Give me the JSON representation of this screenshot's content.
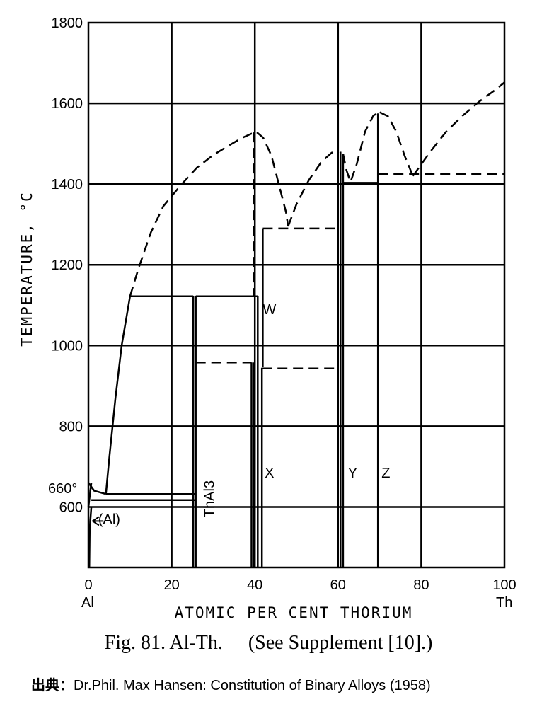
{
  "chart_data": {
    "type": "line",
    "title": "",
    "xlabel": "ATOMIC PER CENT THORIUM",
    "ylabel": "TEMPERATURE, °C",
    "xlim": [
      0,
      100
    ],
    "ylim": [
      450,
      1800
    ],
    "x_ticks": [
      "0",
      "20",
      "40",
      "60",
      "80",
      "100"
    ],
    "y_ticks": [
      "600",
      "800",
      "1000",
      "1200",
      "1400",
      "1600",
      "1800"
    ],
    "x_end_labels": {
      "left": "Al",
      "right": "Th"
    },
    "melting_point_label": "660°",
    "grid": true,
    "phase_labels": [
      {
        "text": "(Al)",
        "x": 5,
        "y": 570
      },
      {
        "text": "ThAl3",
        "x": 28.5,
        "y": 620
      },
      {
        "text": "W",
        "x": 43.5,
        "y": 1090
      },
      {
        "text": "X",
        "x": 43.5,
        "y": 685
      },
      {
        "text": "Y",
        "x": 63.5,
        "y": 685
      },
      {
        "text": "Z",
        "x": 71.5,
        "y": 685
      }
    ],
    "series": [
      {
        "style": "solid",
        "points": [
          [
            4.2,
            632
          ],
          [
            5,
            720
          ],
          [
            6.5,
            870
          ],
          [
            8,
            1000
          ],
          [
            10,
            1122
          ]
        ]
      },
      {
        "style": "solid",
        "points": [
          [
            0,
            660
          ],
          [
            1.4,
            640
          ],
          [
            4.2,
            632
          ]
        ]
      },
      {
        "style": "solid",
        "points": [
          [
            0,
            600
          ],
          [
            0.7,
            660
          ]
        ]
      },
      {
        "style": "solid",
        "points": [
          [
            0.2,
            450
          ],
          [
            0.3,
            545
          ],
          [
            0.7,
            600
          ]
        ]
      },
      {
        "style": "solid",
        "points": [
          [
            0.7,
            617
          ],
          [
            25.8,
            617
          ]
        ]
      },
      {
        "style": "solid",
        "points": [
          [
            4.2,
            632
          ],
          [
            25.8,
            632
          ]
        ]
      },
      {
        "style": "solid",
        "points": [
          [
            10,
            1122
          ],
          [
            25.2,
            1122
          ]
        ]
      },
      {
        "style": "solid",
        "points": [
          [
            25.8,
            1122
          ],
          [
            40.7,
            1122
          ]
        ]
      },
      {
        "style": "solid",
        "points": [
          [
            25.2,
            450
          ],
          [
            25.2,
            1122
          ]
        ]
      },
      {
        "style": "solid",
        "points": [
          [
            25.8,
            450
          ],
          [
            25.8,
            1122
          ]
        ]
      },
      {
        "style": "solid",
        "points": [
          [
            39.2,
            450
          ],
          [
            39.2,
            958
          ]
        ]
      },
      {
        "style": "solid",
        "points": [
          [
            39.8,
            450
          ],
          [
            39.8,
            958
          ]
        ]
      },
      {
        "style": "solid",
        "points": [
          [
            40.7,
            450
          ],
          [
            40.7,
            1122
          ]
        ]
      },
      {
        "style": "solid",
        "points": [
          [
            41.7,
            450
          ],
          [
            41.7,
            945
          ]
        ]
      },
      {
        "style": "solid",
        "points": [
          [
            41.9,
            948
          ],
          [
            41.9,
            1290
          ]
        ]
      },
      {
        "style": "solid",
        "points": [
          [
            60.6,
            450
          ],
          [
            60.6,
            1480
          ]
        ]
      },
      {
        "style": "solid",
        "points": [
          [
            61.2,
            450
          ],
          [
            61.2,
            1475
          ]
        ]
      },
      {
        "style": "solid",
        "points": [
          [
            69.6,
            450
          ],
          [
            69.6,
            1575
          ]
        ]
      },
      {
        "style": "solid",
        "points": [
          [
            61.2,
            1403
          ],
          [
            69.6,
            1403
          ]
        ]
      },
      {
        "style": "dashed",
        "points": [
          [
            10,
            1122
          ],
          [
            12,
            1190
          ],
          [
            15,
            1280
          ],
          [
            18,
            1345
          ],
          [
            22,
            1395
          ],
          [
            26,
            1440
          ],
          [
            30,
            1472
          ],
          [
            34,
            1497
          ],
          [
            37,
            1515
          ],
          [
            39.2,
            1525
          ],
          [
            40.5,
            1528
          ]
        ]
      },
      {
        "style": "dashed",
        "points": [
          [
            40.5,
            1528
          ],
          [
            42,
            1515
          ],
          [
            44,
            1470
          ],
          [
            46,
            1390
          ],
          [
            47.5,
            1330
          ],
          [
            48,
            1295
          ]
        ]
      },
      {
        "style": "dashed",
        "points": [
          [
            48,
            1295
          ],
          [
            50,
            1350
          ],
          [
            53,
            1410
          ],
          [
            56,
            1455
          ],
          [
            58.5,
            1478
          ],
          [
            60.2,
            1480
          ]
        ]
      },
      {
        "style": "dashed",
        "points": [
          [
            61.2,
            1475
          ],
          [
            62,
            1435
          ],
          [
            63,
            1405
          ],
          [
            64.5,
            1450
          ],
          [
            66.5,
            1530
          ],
          [
            68.5,
            1570
          ],
          [
            70,
            1578
          ]
        ]
      },
      {
        "style": "dashed",
        "points": [
          [
            70,
            1578
          ],
          [
            72,
            1568
          ],
          [
            74,
            1530
          ],
          [
            76,
            1470
          ],
          [
            78,
            1420
          ]
        ]
      },
      {
        "style": "dashed",
        "points": [
          [
            78,
            1420
          ],
          [
            82,
            1478
          ],
          [
            86,
            1530
          ],
          [
            90,
            1570
          ],
          [
            94,
            1605
          ],
          [
            98,
            1635
          ],
          [
            100,
            1652
          ]
        ]
      },
      {
        "style": "dashed",
        "points": [
          [
            25.8,
            958
          ],
          [
            39.2,
            958
          ]
        ]
      },
      {
        "style": "dashed",
        "points": [
          [
            41.7,
            943
          ],
          [
            60.6,
            943
          ]
        ]
      },
      {
        "style": "dashed",
        "points": [
          [
            41.9,
            1290
          ],
          [
            60.6,
            1290
          ]
        ]
      },
      {
        "style": "dashed",
        "points": [
          [
            69.6,
            1425
          ],
          [
            100,
            1425
          ]
        ]
      },
      {
        "style": "dashed",
        "points": [
          [
            39.8,
            1528
          ],
          [
            39.8,
            1122
          ]
        ]
      },
      {
        "style": "dashed",
        "points": [
          [
            60.6,
            1480
          ],
          [
            60.6,
            1480
          ]
        ]
      }
    ]
  },
  "caption": {
    "fig": "Fig. 81. Al-Th.",
    "note": "(See Supplement [10].)"
  },
  "source": {
    "label": "出典",
    "sep": "：",
    "text": "Dr.Phil. Max Hansen: Constitution of Binary Alloys (1958)"
  }
}
